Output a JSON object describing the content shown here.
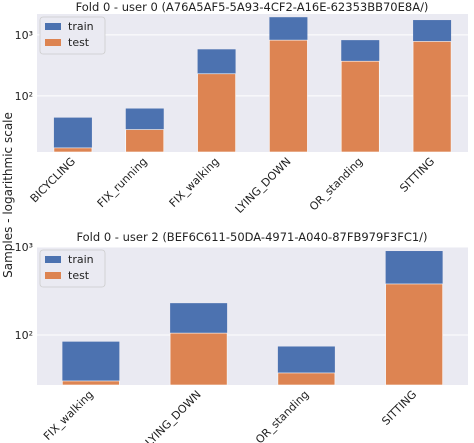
{
  "ylabel": "Samples - logarithmic scale",
  "colors": {
    "train": "#4c72b0",
    "test": "#dd8452",
    "plot_bg": "#eaeaf2",
    "grid": "#ffffff"
  },
  "chart_data": [
    {
      "type": "bar",
      "stacked": true,
      "yscale": "log",
      "title": "Fold 0 - user 0 (A76A5AF5-5A93-4CF2-A16E-62353BB70E8A/)",
      "categories": [
        "BICYCLING",
        "FIX_running",
        "FIX_walking",
        "LYING_DOWN",
        "OR_standing",
        "SITTING"
      ],
      "series": [
        {
          "name": "train",
          "values": [
            44,
            62,
            580,
            1950,
            820,
            1750
          ]
        },
        {
          "name": "test",
          "values": [
            14,
            28,
            230,
            820,
            370,
            780
          ]
        }
      ],
      "yticks": [
        "10²",
        "10³"
      ],
      "ylim": [
        12,
        2200
      ],
      "legend": "top-left",
      "grid": true
    },
    {
      "type": "bar",
      "stacked": true,
      "yscale": "log",
      "title": "Fold 0 - user 2 (BEF6C611-50DA-4971-A040-87FB979F3FC1/)",
      "categories": [
        "FIX_walking",
        "LYING_DOWN",
        "OR_standing",
        "SITTING"
      ],
      "series": [
        {
          "name": "train",
          "values": [
            84,
            230,
            74,
            900
          ]
        },
        {
          "name": "test",
          "values": [
            30,
            105,
            37,
            380
          ]
        }
      ],
      "yticks": [
        "10²",
        "10³"
      ],
      "ylim": [
        27,
        1000
      ],
      "legend": "top-left",
      "grid": true
    }
  ]
}
